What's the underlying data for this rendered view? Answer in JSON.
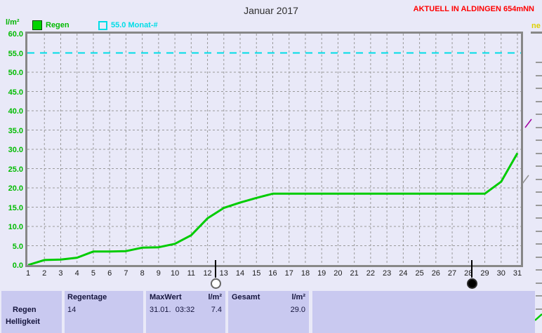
{
  "header": {
    "station_banner": "AKTUELL IN ALDINGEN 654mNN",
    "neighbour_panel_text_fragment": "ne"
  },
  "chart_data": {
    "type": "line",
    "title": "Januar 2017",
    "ylabel": "l/m²",
    "xlabel": "",
    "ylim": [
      0,
      60
    ],
    "y_tick_labels": [
      "60.0",
      "55.0",
      "50.0",
      "45.0",
      "40.0",
      "35.0",
      "30.0",
      "25.0",
      "20.0",
      "15.0",
      "10.0",
      "5.0",
      "0.0"
    ],
    "x": [
      1,
      2,
      3,
      4,
      5,
      6,
      7,
      8,
      9,
      10,
      11,
      12,
      13,
      14,
      15,
      16,
      17,
      18,
      19,
      20,
      21,
      22,
      23,
      24,
      25,
      26,
      27,
      28,
      29,
      30,
      31
    ],
    "series": [
      {
        "name": "Regen",
        "color": "#00cc00",
        "values": [
          0.0,
          1.3,
          1.4,
          1.9,
          3.5,
          3.5,
          3.6,
          4.5,
          4.6,
          5.5,
          7.7,
          12.1,
          14.8,
          16.2,
          17.4,
          18.5,
          18.5,
          18.5,
          18.5,
          18.5,
          18.5,
          18.5,
          18.5,
          18.5,
          18.5,
          18.5,
          18.5,
          18.5,
          18.5,
          21.6,
          29.0
        ]
      }
    ],
    "reference_line": {
      "label": "55.0 Monat-#",
      "value": 55.0,
      "color": "#00dde6",
      "style": "dashed"
    },
    "grid": true,
    "legend_position": "top-left",
    "legend": [
      {
        "label": "Regen",
        "swatch": "filled-green-square"
      },
      {
        "label": "55.0 Monat-#",
        "swatch": "outline-cyan-square"
      }
    ],
    "moon_markers": [
      {
        "day": 12.5,
        "phase": "full-moon"
      },
      {
        "day": 28.2,
        "phase": "new-moon"
      }
    ]
  },
  "stats_table": {
    "sensor_label": "Regen",
    "next_row_label_clipped": "Helligkeit",
    "regentage": {
      "header": "Regentage",
      "value": "14"
    },
    "maxwert": {
      "header": "MaxWert",
      "unit": "l/m²",
      "value": "31.01.  03:32",
      "max_value": "7.4"
    },
    "gesamt": {
      "header": "Gesamt",
      "unit": "l/m²",
      "total_value": "29.0"
    }
  },
  "colors": {
    "background": "#e9e9f8",
    "series_green": "#00cc00",
    "reference_cyan": "#00dde6",
    "banner_red": "#ff0000",
    "grid_gray": "#9a9a9a",
    "table_cell": "#c9c9f0"
  }
}
